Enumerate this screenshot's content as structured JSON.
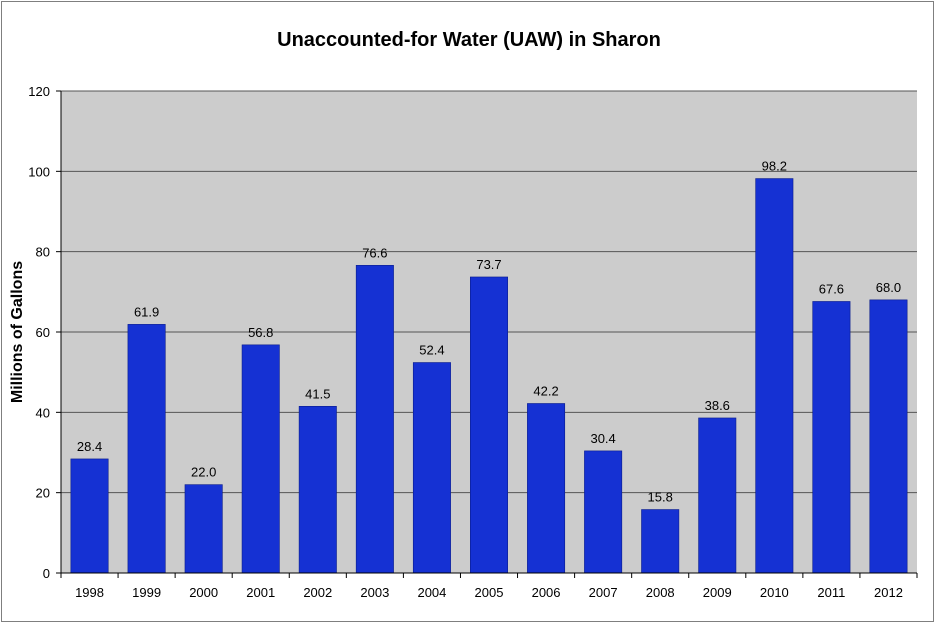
{
  "chart_data": {
    "type": "bar",
    "title": "Unaccounted-for Water (UAW) in Sharon",
    "xlabel": "",
    "ylabel": "Millions of Gallons",
    "categories": [
      "1998",
      "1999",
      "2000",
      "2001",
      "2002",
      "2003",
      "2004",
      "2005",
      "2006",
      "2007",
      "2008",
      "2009",
      "2010",
      "2011",
      "2012"
    ],
    "values": [
      28.4,
      61.9,
      22.0,
      56.8,
      41.5,
      76.6,
      52.4,
      73.7,
      42.2,
      30.4,
      15.8,
      38.6,
      98.2,
      67.6,
      68.0
    ],
    "data_labels": [
      "28.4",
      "61.9",
      "22.0",
      "56.8",
      "41.5",
      "76.6",
      "52.4",
      "73.7",
      "42.2",
      "30.4",
      "15.8",
      "38.6",
      "98.2",
      "67.6",
      "68.0"
    ],
    "ylim": [
      0,
      120
    ],
    "yticks": [
      0,
      20,
      40,
      60,
      80,
      100,
      120
    ],
    "grid": true,
    "legend": "none",
    "colors": {
      "bar": "#1531d3",
      "bar_edge": "#0a1c8c",
      "plot_background": "#cccccc",
      "gridline": "#555555",
      "axis": "#000000"
    }
  }
}
